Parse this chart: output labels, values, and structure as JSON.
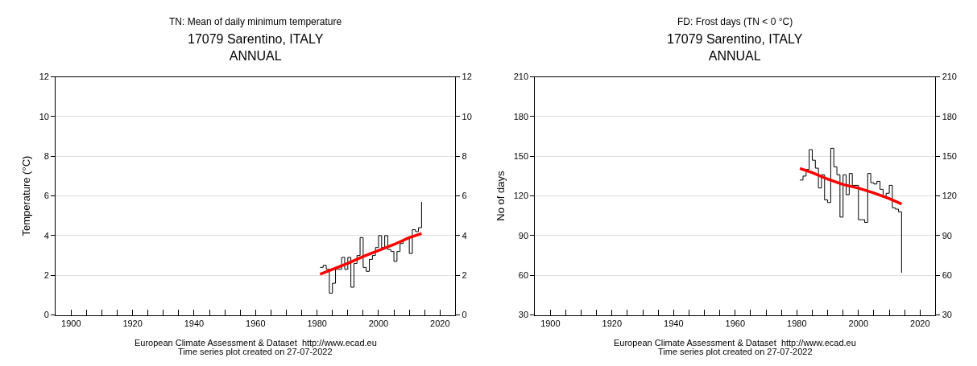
{
  "chart_data": [
    {
      "type": "step",
      "title": "TN: Mean of daily minimum temperature",
      "subtitle": "17079 Sarentino, ITALY\nANNUAL",
      "ylabel": "Temperature (°C)",
      "x": [
        1981,
        1982,
        1983,
        1984,
        1985,
        1986,
        1987,
        1988,
        1989,
        1990,
        1991,
        1992,
        1993,
        1994,
        1995,
        1996,
        1997,
        1998,
        1999,
        2000,
        2001,
        2002,
        2003,
        2004,
        2005,
        2006,
        2007,
        2008,
        2009,
        2010,
        2011,
        2012,
        2013,
        2014
      ],
      "series": [
        {
          "color": "#000000",
          "values": [
            2.4,
            2.5,
            2.3,
            1.1,
            1.6,
            2.3,
            2.3,
            2.9,
            2.3,
            2.9,
            1.4,
            2.6,
            3.0,
            3.9,
            2.4,
            2.2,
            2.8,
            3.0,
            3.4,
            4.0,
            3.4,
            4.0,
            3.3,
            3.2,
            2.7,
            3.2,
            3.6,
            3.8,
            3.9,
            3.1,
            4.3,
            4.2,
            4.4,
            5.7
          ]
        },
        {
          "type": "line",
          "color": "#ff0000",
          "x": [
            1981,
            1985,
            1990,
            1995,
            2000,
            2005,
            2010,
            2014
          ],
          "values": [
            2.05,
            2.3,
            2.6,
            2.95,
            3.25,
            3.55,
            3.9,
            4.1
          ]
        }
      ],
      "xlim": [
        1895,
        2025
      ],
      "xticks": [
        1900,
        {
          "value": 1905,
          "label": null
        },
        {
          "value": 1910,
          "label": null
        },
        {
          "value": 1915,
          "label": null
        },
        1920,
        {
          "value": 1925,
          "label": null
        },
        {
          "value": 1930,
          "label": null
        },
        {
          "value": 1935,
          "label": null
        },
        1940,
        {
          "value": 1945,
          "label": null
        },
        {
          "value": 1950,
          "label": null
        },
        {
          "value": 1955,
          "label": null
        },
        1960,
        {
          "value": 1965,
          "label": null
        },
        {
          "value": 1970,
          "label": null
        },
        {
          "value": 1975,
          "label": null
        },
        1980,
        {
          "value": 1985,
          "label": null
        },
        {
          "value": 1990,
          "label": null
        },
        {
          "value": 1995,
          "label": null
        },
        2000,
        {
          "value": 2005,
          "label": null
        },
        {
          "value": 2010,
          "label": null
        },
        {
          "value": 2015,
          "label": null
        },
        2020
      ],
      "ylim": [
        0,
        12
      ],
      "yticks": [
        0,
        2,
        4,
        6,
        8,
        10,
        12
      ],
      "y2lim": [
        0,
        12
      ],
      "y2ticks": [
        0,
        2,
        4,
        6,
        8,
        10,
        12
      ],
      "grid": "y",
      "annotations": [
        "European Climate Assessment & Dataset  http://www.ecad.eu",
        "Time series plot created on 27-07-2022"
      ]
    },
    {
      "type": "step",
      "title": "FD: Frost days (TN < 0 °C)",
      "subtitle": "17079 Sarentino, ITALY\nANNUAL",
      "ylabel": "No of days",
      "x": [
        1981,
        1982,
        1983,
        1984,
        1985,
        1986,
        1987,
        1988,
        1989,
        1990,
        1991,
        1992,
        1993,
        1994,
        1995,
        1996,
        1997,
        1998,
        1999,
        2000,
        2001,
        2002,
        2003,
        2004,
        2005,
        2006,
        2007,
        2008,
        2009,
        2010,
        2011,
        2012,
        2013,
        2014
      ],
      "series": [
        {
          "color": "#000000",
          "values": [
            132,
            135,
            140,
            155,
            147,
            141,
            126,
            136,
            117,
            115,
            156,
            142,
            136,
            104,
            136,
            121,
            137,
            128,
            128,
            102,
            102,
            100,
            137,
            130,
            129,
            131,
            125,
            120,
            122,
            128,
            111,
            110,
            108,
            62
          ]
        },
        {
          "type": "line",
          "color": "#ff0000",
          "x": [
            1981,
            1985,
            1990,
            1995,
            2000,
            2005,
            2010,
            2014
          ],
          "values": [
            140.8,
            137.6,
            132.7,
            128.6,
            125.9,
            122.3,
            118,
            113.9
          ]
        }
      ],
      "xlim": [
        1895,
        2025
      ],
      "xticks": [
        1900,
        {
          "value": 1905,
          "label": null
        },
        {
          "value": 1910,
          "label": null
        },
        {
          "value": 1915,
          "label": null
        },
        1920,
        {
          "value": 1925,
          "label": null
        },
        {
          "value": 1930,
          "label": null
        },
        {
          "value": 1935,
          "label": null
        },
        1940,
        {
          "value": 1945,
          "label": null
        },
        {
          "value": 1950,
          "label": null
        },
        {
          "value": 1955,
          "label": null
        },
        1960,
        {
          "value": 1965,
          "label": null
        },
        {
          "value": 1970,
          "label": null
        },
        {
          "value": 1975,
          "label": null
        },
        1980,
        {
          "value": 1985,
          "label": null
        },
        {
          "value": 1990,
          "label": null
        },
        {
          "value": 1995,
          "label": null
        },
        2000,
        {
          "value": 2005,
          "label": null
        },
        {
          "value": 2010,
          "label": null
        },
        {
          "value": 2015,
          "label": null
        },
        2020
      ],
      "ylim": [
        30,
        210
      ],
      "yticks": [
        30,
        60,
        90,
        120,
        150,
        180,
        210
      ],
      "y2lim": [
        30,
        210
      ],
      "y2ticks": [
        30,
        60,
        90,
        120,
        150,
        180,
        210
      ],
      "grid": "y",
      "annotations": [
        "European Climate Assessment & Dataset  http://www.ecad.eu",
        "Time series plot created on 27-07-2022"
      ]
    }
  ]
}
